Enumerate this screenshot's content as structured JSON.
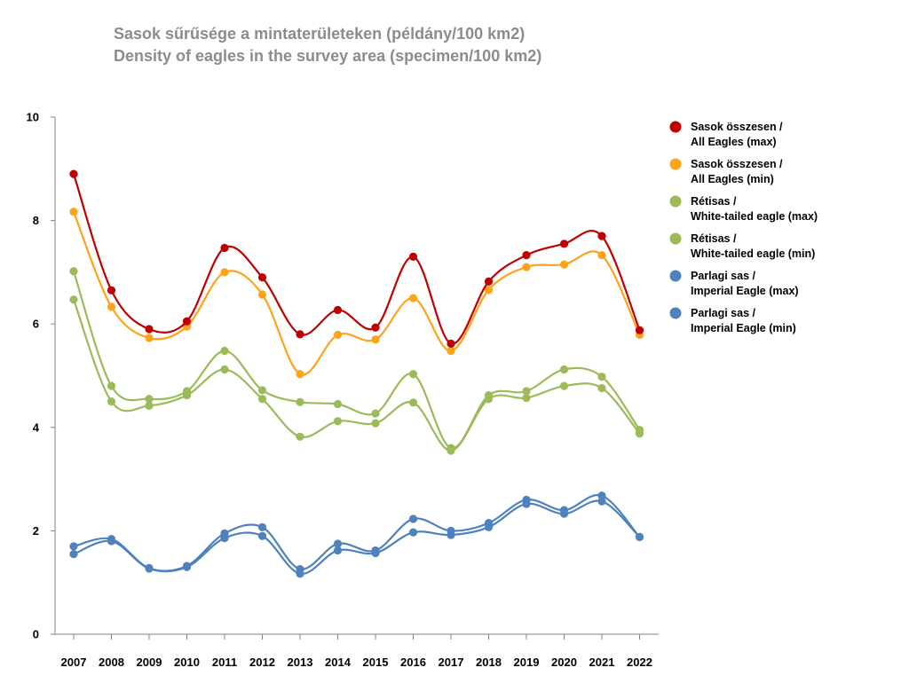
{
  "chart_data": {
    "type": "line",
    "title": "Sasok sűrűsége a mintaterületeken (példány/100 km2)",
    "subtitle": "Density of eagles in the survey area (specimen/100 km2)",
    "categories": [
      "2007",
      "2008",
      "2009",
      "2010",
      "2011",
      "2012",
      "2013",
      "2014",
      "2015",
      "2016",
      "2017",
      "2018",
      "2019",
      "2020",
      "2021",
      "2022"
    ],
    "y_ticks": [
      "0",
      "2",
      "4",
      "6",
      "8",
      "10"
    ],
    "ylim": [
      0,
      10
    ],
    "grid": false,
    "legend_position": "right",
    "series": [
      {
        "name_line1": "Sasok összesen /",
        "name_line2": "All Eagles (max)",
        "color": "#c00000",
        "values": [
          8.9,
          6.65,
          5.9,
          6.05,
          7.47,
          6.9,
          5.8,
          6.27,
          5.93,
          7.3,
          5.62,
          6.82,
          7.33,
          7.55,
          7.7,
          5.88
        ]
      },
      {
        "name_line1": "Sasok összesen /",
        "name_line2": "All Eagles (min)",
        "color": "#ffa31a",
        "values": [
          8.17,
          6.33,
          5.73,
          5.95,
          7.0,
          6.57,
          5.03,
          5.79,
          5.7,
          6.5,
          5.48,
          6.66,
          7.1,
          7.15,
          7.33,
          5.79
        ]
      },
      {
        "name_line1": "Rétisas /",
        "name_line2": "White-tailed eagle (max)",
        "color": "#9bbb59",
        "values": [
          7.02,
          4.8,
          4.55,
          4.7,
          5.48,
          4.72,
          4.49,
          4.45,
          4.27,
          5.03,
          3.6,
          4.62,
          4.7,
          5.12,
          4.98,
          3.95
        ]
      },
      {
        "name_line1": "Rétisas /",
        "name_line2": "White-tailed eagle (min)",
        "color": "#9bbb59",
        "values": [
          6.47,
          4.5,
          4.42,
          4.62,
          5.12,
          4.55,
          3.82,
          4.12,
          4.08,
          4.48,
          3.55,
          4.55,
          4.57,
          4.8,
          4.76,
          3.88
        ]
      },
      {
        "name_line1": "Parlagi sas /",
        "name_line2": "Imperial Eagle (max)",
        "color": "#4f81bd",
        "values": [
          1.7,
          1.84,
          1.28,
          1.32,
          1.95,
          2.07,
          1.26,
          1.75,
          1.62,
          2.23,
          2.0,
          2.15,
          2.6,
          2.4,
          2.68,
          1.88
        ]
      },
      {
        "name_line1": "Parlagi sas /",
        "name_line2": "Imperial Eagle (min)",
        "color": "#4f81bd",
        "values": [
          1.55,
          1.8,
          1.27,
          1.3,
          1.86,
          1.9,
          1.17,
          1.62,
          1.57,
          1.97,
          1.92,
          2.07,
          2.52,
          2.33,
          2.57,
          1.88
        ]
      }
    ]
  }
}
